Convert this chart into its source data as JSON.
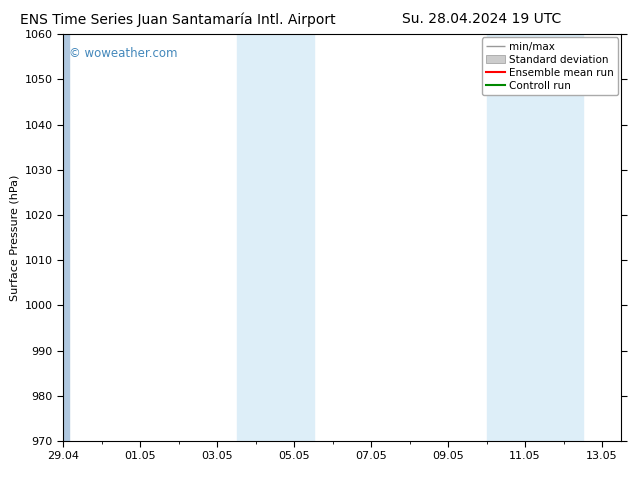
{
  "title_left": "ENS Time Series Juan Santamaría Intl. Airport",
  "title_right": "Su. 28.04.2024 19 UTC",
  "ylabel": "Surface Pressure (hPa)",
  "ylim": [
    970,
    1060
  ],
  "yticks": [
    970,
    980,
    990,
    1000,
    1010,
    1020,
    1030,
    1040,
    1050,
    1060
  ],
  "xlim_start_days": 0,
  "xlim_end_days": 14.5,
  "xtick_labels": [
    "29.04",
    "01.05",
    "03.05",
    "05.05",
    "07.05",
    "09.05",
    "11.05",
    "13.05"
  ],
  "xtick_days": [
    0,
    2,
    4,
    6,
    8,
    10,
    12,
    14
  ],
  "shaded_bands": [
    {
      "start": 4.5,
      "end": 6.5,
      "color": "#ddeef8"
    },
    {
      "start": 11.0,
      "end": 13.5,
      "color": "#ddeef8"
    }
  ],
  "left_edge_band": {
    "start": -0.1,
    "end": 0.15,
    "color": "#b0c8e0"
  },
  "watermark": "© woweather.com",
  "watermark_color": "#4488bb",
  "background_color": "#ffffff",
  "plot_bg_color": "#ffffff",
  "legend_items": [
    "min/max",
    "Standard deviation",
    "Ensemble mean run",
    "Controll run"
  ],
  "minmax_color": "#999999",
  "std_facecolor": "#cccccc",
  "std_edgecolor": "#999999",
  "ens_color": "#ff0000",
  "ctrl_color": "#008800",
  "title_fontsize": 10,
  "axis_label_fontsize": 8,
  "tick_fontsize": 8,
  "legend_fontsize": 7.5
}
